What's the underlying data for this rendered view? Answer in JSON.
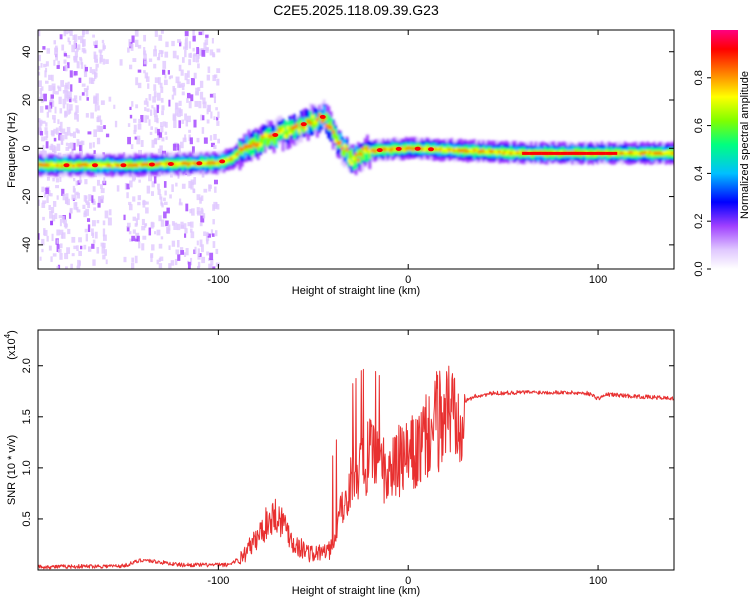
{
  "figure": {
    "title": "C2E5.2025.118.09.39.G23"
  },
  "chart_data": [
    {
      "type": "heatmap",
      "xlabel": "Height of straight line (km)",
      "ylabel": "Frequency (Hz)",
      "xlim": [
        -195,
        140
      ],
      "ylim": [
        -50,
        49
      ],
      "xticks": [
        -100,
        0,
        100
      ],
      "yticks": [
        -40,
        -20,
        0,
        20,
        40
      ],
      "grid": false,
      "colorbar": {
        "label": "Normalized spectral amplitude",
        "range": [
          0,
          1
        ],
        "ticks": [
          0.0,
          0.2,
          0.4,
          0.6,
          0.8
        ],
        "colors": [
          "#ffffff",
          "#e0c8ff",
          "#a040ff",
          "#0000ff",
          "#00c0ff",
          "#00ff80",
          "#80ff00",
          "#ffff00",
          "#ff8000",
          "#ff0000",
          "#ff0080"
        ]
      },
      "ridge": [
        {
          "x": -195,
          "y": -7
        },
        {
          "x": -150,
          "y": -7
        },
        {
          "x": -100,
          "y": -6
        },
        {
          "x": -93,
          "y": -4
        },
        {
          "x": -85,
          "y": 1
        },
        {
          "x": -75,
          "y": 4
        },
        {
          "x": -65,
          "y": 7
        },
        {
          "x": -55,
          "y": 10
        },
        {
          "x": -45,
          "y": 13
        },
        {
          "x": -40,
          "y": 6
        },
        {
          "x": -35,
          "y": 0
        },
        {
          "x": -30,
          "y": -5
        },
        {
          "x": -25,
          "y": -2
        },
        {
          "x": -20,
          "y": -1
        },
        {
          "x": 0,
          "y": 0
        },
        {
          "x": 30,
          "y": -1
        },
        {
          "x": 60,
          "y": -2
        },
        {
          "x": 100,
          "y": -2
        },
        {
          "x": 140,
          "y": -2
        }
      ]
    },
    {
      "type": "line",
      "xlabel": "Height of straight line (km)",
      "ylabel": "SNR (10 * v/v)",
      "yscale_label": "(x10",
      "yscale_exp": "4",
      "xlim": [
        -195,
        140
      ],
      "ylim": [
        0,
        2.35
      ],
      "xticks": [
        -100,
        0,
        100
      ],
      "yticks": [
        0.5,
        1.0,
        1.5,
        2.0
      ],
      "ytick_labels": [
        "0.5",
        "1.0",
        "1.5",
        "2.0"
      ],
      "grid": false,
      "color": "#e83030",
      "points": [
        {
          "x": -195,
          "y": 0.03
        },
        {
          "x": -150,
          "y": 0.04
        },
        {
          "x": -140,
          "y": 0.1
        },
        {
          "x": -120,
          "y": 0.05
        },
        {
          "x": -95,
          "y": 0.05
        },
        {
          "x": -88,
          "y": 0.12
        },
        {
          "x": -80,
          "y": 0.3
        },
        {
          "x": -75,
          "y": 0.45
        },
        {
          "x": -70,
          "y": 0.55
        },
        {
          "x": -65,
          "y": 0.45
        },
        {
          "x": -60,
          "y": 0.25
        },
        {
          "x": -50,
          "y": 0.15
        },
        {
          "x": -40,
          "y": 0.2
        },
        {
          "x": -35,
          "y": 0.6
        },
        {
          "x": -30,
          "y": 0.9
        },
        {
          "x": -25,
          "y": 1.05
        },
        {
          "x": -20,
          "y": 1.1
        },
        {
          "x": -15,
          "y": 1.0
        },
        {
          "x": -10,
          "y": 0.95
        },
        {
          "x": -5,
          "y": 1.05
        },
        {
          "x": 0,
          "y": 1.1
        },
        {
          "x": 5,
          "y": 1.15
        },
        {
          "x": 10,
          "y": 1.3
        },
        {
          "x": 15,
          "y": 1.45
        },
        {
          "x": 20,
          "y": 1.55
        },
        {
          "x": 25,
          "y": 1.6
        },
        {
          "x": 30,
          "y": 1.65
        },
        {
          "x": 35,
          "y": 1.7
        },
        {
          "x": 45,
          "y": 1.73
        },
        {
          "x": 60,
          "y": 1.74
        },
        {
          "x": 80,
          "y": 1.74
        },
        {
          "x": 95,
          "y": 1.73
        },
        {
          "x": 100,
          "y": 1.68
        },
        {
          "x": 105,
          "y": 1.72
        },
        {
          "x": 120,
          "y": 1.7
        },
        {
          "x": 140,
          "y": 1.68
        }
      ]
    }
  ]
}
